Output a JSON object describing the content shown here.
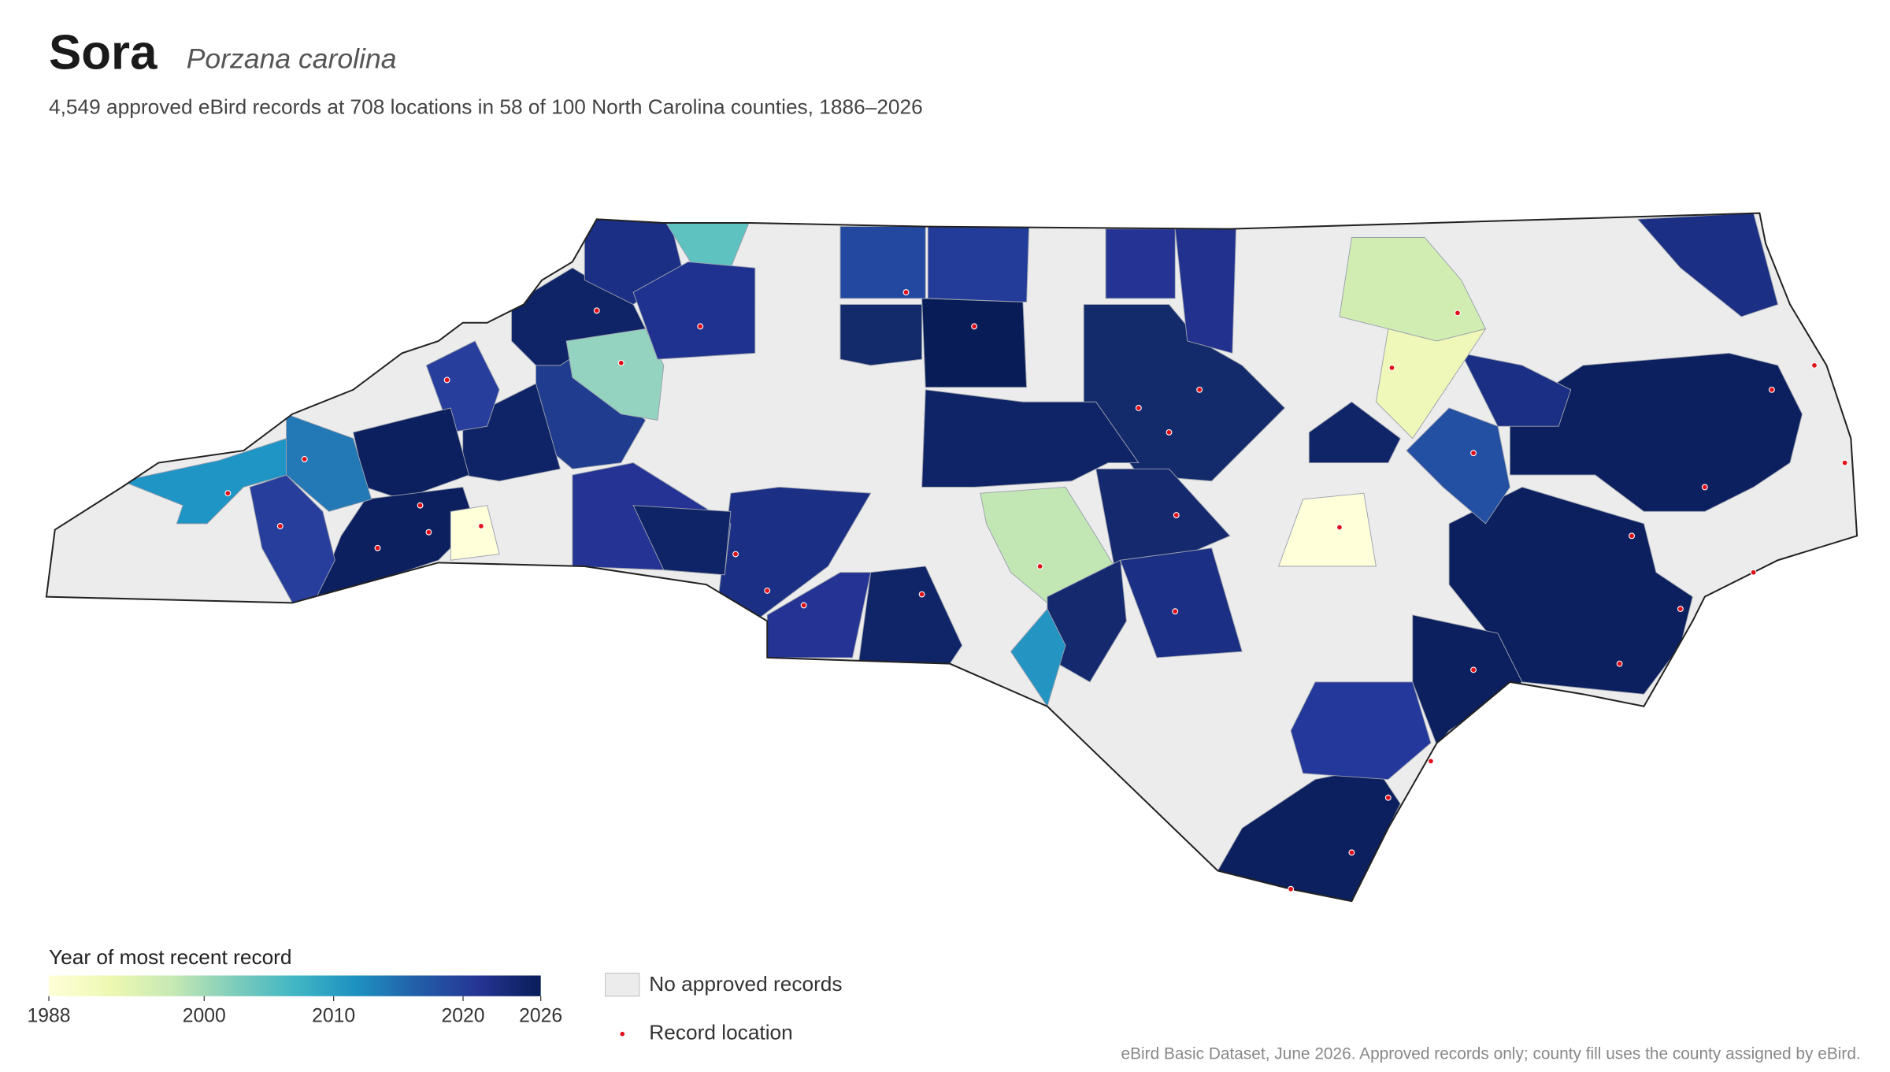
{
  "header": {
    "title": "Sora",
    "scientific_name": "Porzana carolina",
    "subtitle": "4,549 approved eBird records at 708 locations in 58 of 100 North Carolina counties, 1886–2026"
  },
  "legend": {
    "title": "Year of most recent record",
    "colorbar": {
      "lim": [
        1988,
        2026
      ],
      "ticks": [
        1988,
        2000,
        2010,
        2020,
        2026
      ]
    },
    "no_records": "No approved records",
    "record_location": "Record location"
  },
  "footer": "eBird Basic Dataset, June 2026. Approved records only; county fill uses the county assigned by eBird."
}
